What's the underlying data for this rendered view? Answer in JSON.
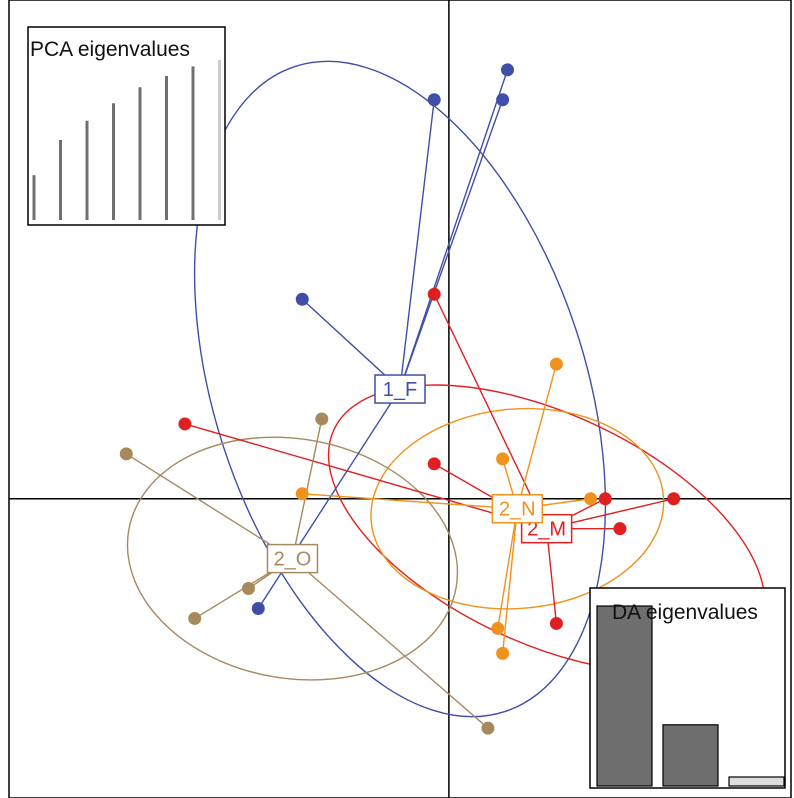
{
  "chart_data": {
    "type": "scatter",
    "title": "",
    "xlabel": "",
    "ylabel": "",
    "axes": {
      "xlim": [
        -4.5,
        3.5
      ],
      "ylim": [
        -3,
        5
      ],
      "grid": false,
      "origin_cross": true
    },
    "groups": [
      {
        "name": "1_F",
        "color": "#3f4fa8",
        "centroid": [
          -0.5,
          1.1
        ],
        "ellipse": {
          "rx": 1.9,
          "ry": 3.4,
          "angle": -18
        },
        "points": [
          [
            -0.15,
            4.0
          ],
          [
            0.6,
            4.3
          ],
          [
            0.55,
            4.0
          ],
          [
            -1.5,
            2.0
          ],
          [
            -1.95,
            -1.1
          ]
        ]
      },
      {
        "name": "2_M",
        "color": "#e02020",
        "centroid": [
          1.0,
          -0.3
        ],
        "ellipse": {
          "rx": 2.4,
          "ry": 1.15,
          "angle": 25
        },
        "points": [
          [
            -0.15,
            2.05
          ],
          [
            -2.7,
            0.75
          ],
          [
            -0.15,
            0.35
          ],
          [
            1.6,
            0.0
          ],
          [
            2.3,
            0.0
          ],
          [
            1.75,
            -0.3
          ],
          [
            1.1,
            -1.25
          ]
        ]
      },
      {
        "name": "2_N",
        "color": "#f0921e",
        "centroid": [
          0.7,
          -0.1
        ],
        "ellipse": {
          "rx": 1.5,
          "ry": 1.0,
          "angle": -5
        },
        "points": [
          [
            1.1,
            1.35
          ],
          [
            0.55,
            0.4
          ],
          [
            -1.5,
            0.05
          ],
          [
            1.45,
            0.0
          ],
          [
            0.5,
            -1.3
          ],
          [
            0.55,
            -1.55
          ]
        ]
      },
      {
        "name": "2_O",
        "color": "#a68a5e",
        "centroid": [
          -1.6,
          -0.6
        ],
        "ellipse": {
          "rx": 1.7,
          "ry": 1.2,
          "angle": 10
        },
        "points": [
          [
            -3.3,
            0.45
          ],
          [
            -1.3,
            0.8
          ],
          [
            -2.05,
            -0.9
          ],
          [
            -2.6,
            -1.2
          ],
          [
            0.4,
            -2.3
          ]
        ]
      }
    ],
    "pca_eigenvalues": {
      "title": "PCA eigenvalues",
      "values": [
        0.28,
        0.5,
        0.62,
        0.73,
        0.83,
        0.9,
        0.96,
        1.0
      ],
      "retained": 7
    },
    "da_eigenvalues": {
      "title": "DA eigenvalues",
      "values": [
        1.0,
        0.34,
        0.05
      ]
    }
  }
}
